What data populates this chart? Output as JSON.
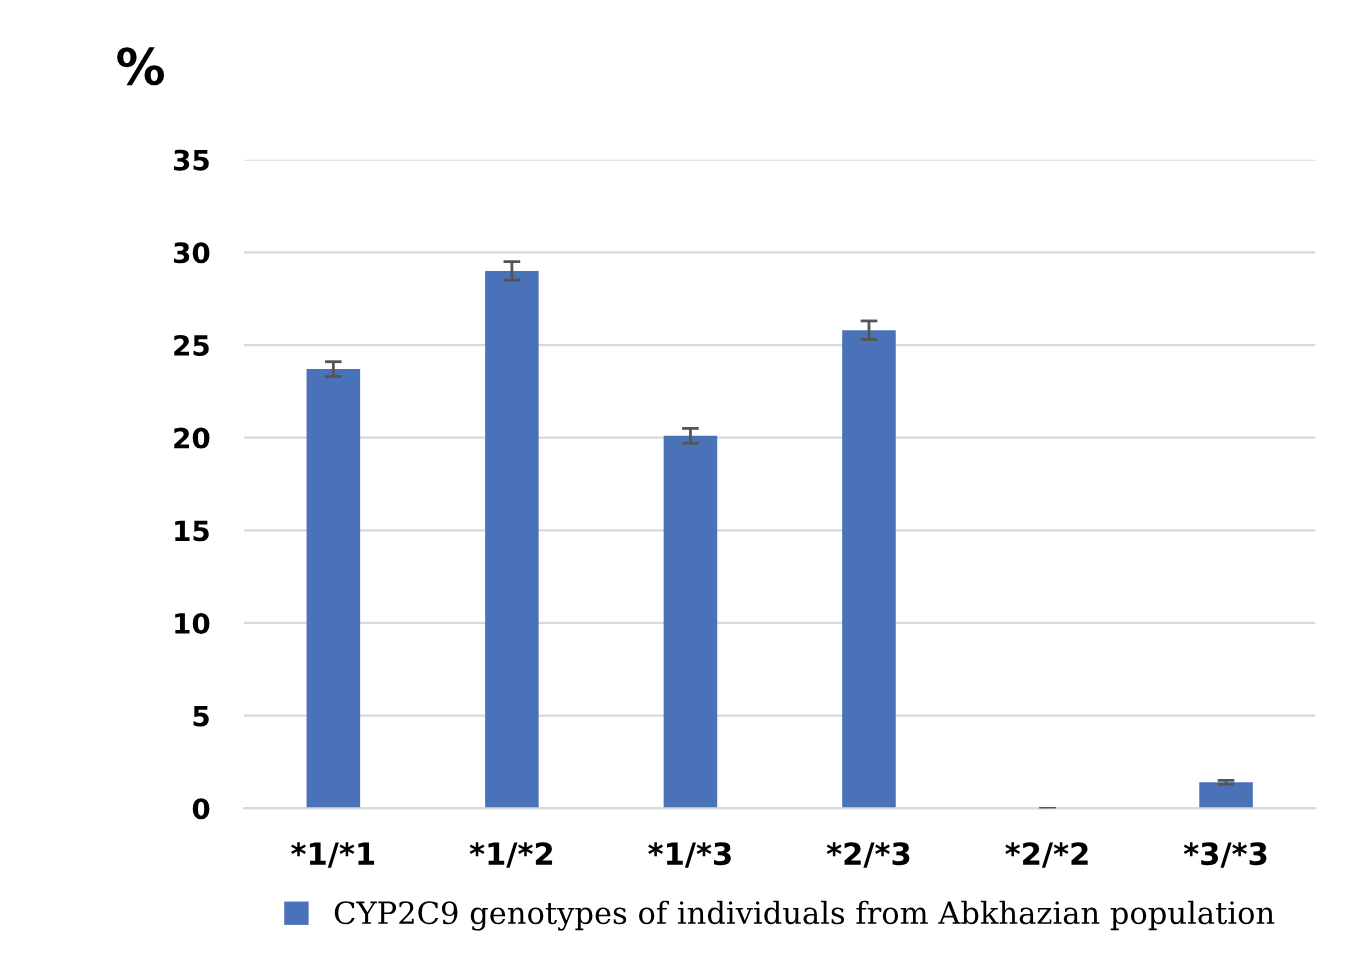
{
  "chart_data": {
    "type": "bar",
    "ylabel": "%",
    "categories": [
      "*1/*1",
      "*1/*2",
      "*1/*3",
      "*2/*3",
      "*2/*2",
      "*3/*3"
    ],
    "series": [
      {
        "name": "CYP2C9 genotypes of individuals from Abkhazian population",
        "color": "#4a72b8",
        "values": [
          23.7,
          29.0,
          20.1,
          25.8,
          0,
          1.4
        ],
        "errors": [
          0.4,
          0.5,
          0.4,
          0.5,
          0,
          0.1
        ]
      }
    ],
    "ylim": [
      0,
      35
    ],
    "yticks": [
      0,
      5,
      10,
      15,
      20,
      25,
      30,
      35
    ],
    "grid": "y",
    "legend": "bottom"
  }
}
